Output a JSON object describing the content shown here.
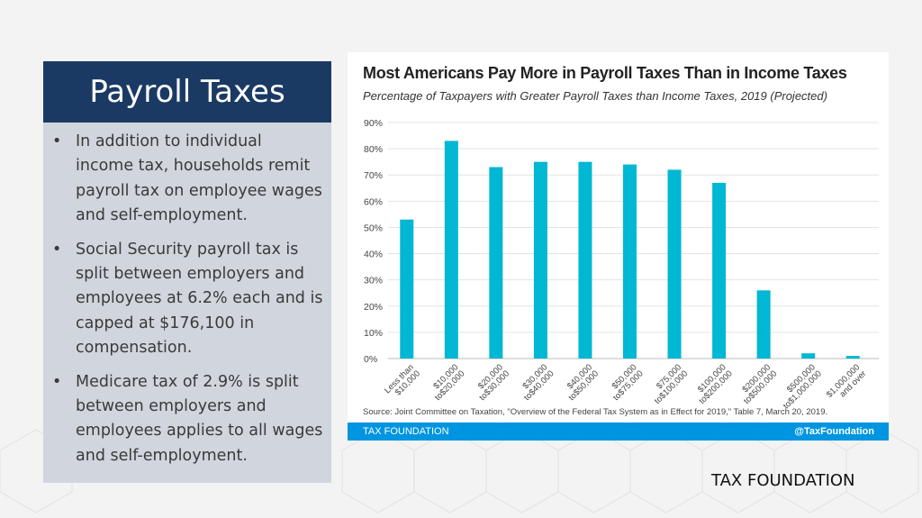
{
  "slide": {
    "title": "Payroll Taxes",
    "bullets": [
      "In addition to individual income tax, households remit payroll tax on employee wages and self-employment.",
      "Social Security payroll tax is split between employers and employees at 6.2% each and is capped at $176,100 in compensation.",
      "Medicare tax of 2.9% is split between employers and employees applies to all wages and self-employment."
    ],
    "bullet_symbol": "•",
    "brand": "TAX FOUNDATION"
  },
  "chart_data": {
    "type": "bar",
    "title": "Most Americans Pay More in Payroll Taxes Than in Income Taxes",
    "subtitle": "Percentage of Taxpayers with Greater Payroll Taxes than Income Taxes, 2019 (Projected)",
    "categories": [
      [
        "Less than",
        "$10,000"
      ],
      [
        "$10,000",
        "to$20,000"
      ],
      [
        "$20,000",
        "to$30,000"
      ],
      [
        "$30,000",
        "to$40,000"
      ],
      [
        "$40,000",
        "to$50,000"
      ],
      [
        "$50,000",
        "to$75,000"
      ],
      [
        "$75,000",
        "to$100,000"
      ],
      [
        "$100,000",
        "to$200,000"
      ],
      [
        "$200,000",
        "to$500,000"
      ],
      [
        "$500,000",
        "to$1,000,000"
      ],
      [
        "$1,000,000",
        "and over"
      ]
    ],
    "values": [
      53,
      83,
      73,
      75,
      75,
      74,
      72,
      67,
      26,
      2,
      1
    ],
    "ylim": [
      0,
      90
    ],
    "yticks": [
      "0%",
      "10%",
      "20%",
      "30%",
      "40%",
      "50%",
      "60%",
      "70%",
      "80%",
      "90%"
    ],
    "grid": true,
    "bar_color": "#00b7d4",
    "source": "Source: Joint Committee on Taxation, \"Overview of the Federal Tax System as in Effect for 2019,\" Table 7, March 20, 2019.",
    "footer_left": "TAX FOUNDATION",
    "footer_right": "@TaxFoundation",
    "footer_color": "#0095e0"
  }
}
